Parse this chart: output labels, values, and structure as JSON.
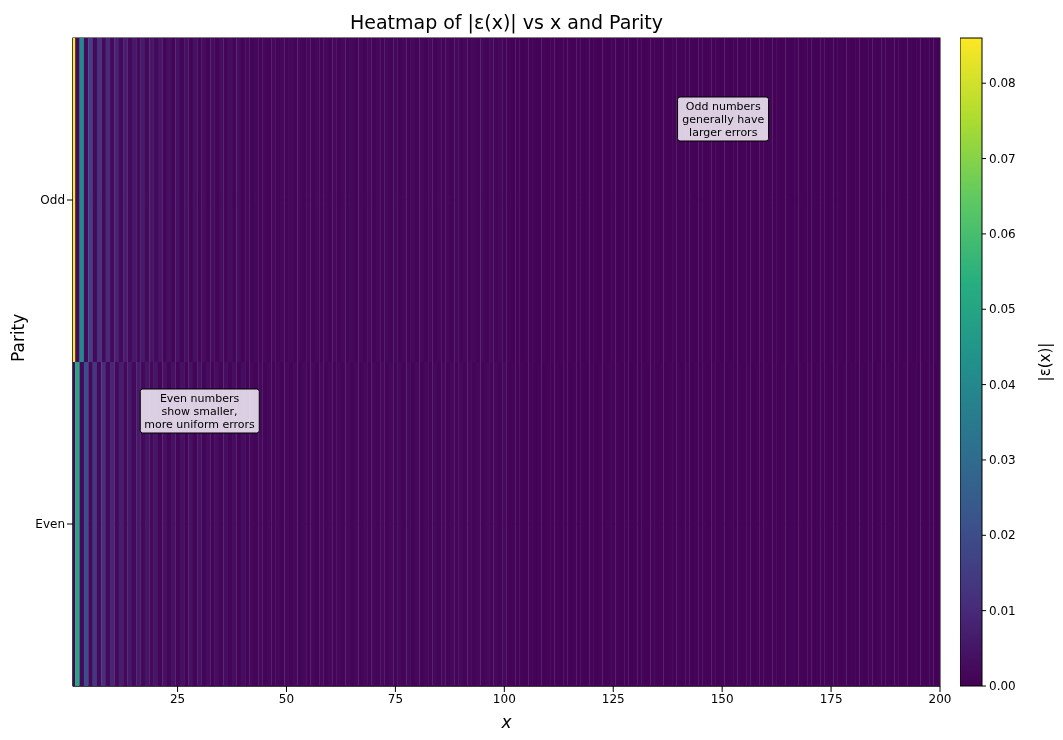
{
  "chart_data": {
    "type": "heatmap",
    "title": "Heatmap of |ε(x)| vs x and Parity",
    "xlabel": "x",
    "ylabel": "Parity",
    "clabel": "|ε(x)|",
    "x": [
      1,
      2,
      3,
      4,
      5,
      6,
      7,
      8,
      9,
      10,
      11,
      12,
      13,
      14,
      15,
      16,
      17,
      18,
      19,
      20,
      21,
      22,
      23,
      24,
      25,
      26,
      27,
      28,
      29,
      30,
      31,
      32,
      33,
      34,
      35,
      36,
      37,
      38,
      39,
      40,
      41,
      42,
      43,
      44,
      45,
      46,
      47,
      48,
      49,
      50,
      51,
      52,
      53,
      54,
      55,
      56,
      57,
      58,
      59,
      60,
      61,
      62,
      63,
      64,
      65,
      66,
      67,
      68,
      69,
      70,
      71,
      72,
      73,
      74,
      75,
      76,
      77,
      78,
      79,
      80,
      81,
      82,
      83,
      84,
      85,
      86,
      87,
      88,
      89,
      90,
      91,
      92,
      93,
      94,
      95,
      96,
      97,
      98,
      99,
      100,
      101,
      102,
      103,
      104,
      105,
      106,
      107,
      108,
      109,
      110,
      111,
      112,
      113,
      114,
      115,
      116,
      117,
      118,
      119,
      120,
      121,
      122,
      123,
      124,
      125,
      126,
      127,
      128,
      129,
      130,
      131,
      132,
      133,
      134,
      135,
      136,
      137,
      138,
      139,
      140,
      141,
      142,
      143,
      144,
      145,
      146,
      147,
      148,
      149,
      150,
      151,
      152,
      153,
      154,
      155,
      156,
      157,
      158,
      159,
      160,
      161,
      162,
      163,
      164,
      165,
      166,
      167,
      168,
      169,
      170,
      171,
      172,
      173,
      174,
      175,
      176,
      177,
      178,
      179,
      180,
      181,
      182,
      183,
      184,
      185,
      186,
      187,
      188,
      189,
      190,
      191,
      192,
      193,
      194,
      195,
      196,
      197,
      198,
      199,
      200
    ],
    "y_categories": [
      "Odd",
      "Even"
    ],
    "cells": [
      [
        0.086,
        0.002,
        0.04,
        0.002,
        0.016,
        0.002,
        0.012,
        0.002,
        0.01,
        0.002,
        0.008,
        0.002,
        0.007,
        0.002,
        0.006,
        0.002,
        0.006,
        0.002,
        0.005,
        0.002,
        0.005,
        0.001,
        0.004,
        0.001,
        0.004,
        0.001,
        0.004,
        0.001,
        0.004,
        0.001,
        0.003,
        0.001,
        0.003,
        0.001,
        0.003,
        0.001,
        0.003,
        0.001,
        0.003,
        0.001,
        0.002,
        0.001,
        0.002,
        0.001,
        0.002,
        0.001,
        0.002,
        0.001,
        0.002,
        0.001,
        0.002,
        0.001,
        0.002,
        0.001,
        0.002,
        0.001,
        0.002,
        0.001,
        0.002,
        0.001,
        0.002,
        0.001,
        0.002,
        0.001,
        0.002,
        0.001,
        0.002,
        0.001,
        0.002,
        0.001,
        0.002,
        0.001,
        0.002,
        0.001,
        0.002,
        0.001,
        0.002,
        0.001,
        0.002,
        0.001,
        0.002,
        0.001,
        0.002,
        0.001,
        0.002,
        0.001,
        0.002,
        0.001,
        0.002,
        0.001,
        0.002,
        0.001,
        0.002,
        0.001,
        0.002,
        0.001,
        0.002,
        0.001,
        0.002,
        0.001,
        0.001,
        0.0005,
        0.001,
        0.0005,
        0.001,
        0.0005,
        0.001,
        0.0005,
        0.001,
        0.0005,
        0.001,
        0.0005,
        0.001,
        0.0005,
        0.001,
        0.0005,
        0.001,
        0.0005,
        0.001,
        0.0005,
        0.001,
        0.0005,
        0.001,
        0.0005,
        0.001,
        0.0005,
        0.001,
        0.0005,
        0.001,
        0.0005,
        0.001,
        0.0005,
        0.001,
        0.0005,
        0.001,
        0.0005,
        0.001,
        0.0005,
        0.001,
        0.0005,
        0.001,
        0.0005,
        0.001,
        0.0005,
        0.001,
        0.0005,
        0.001,
        0.0005,
        0.001,
        0.0005,
        0.001,
        0.0005,
        0.001,
        0.0005,
        0.001,
        0.0005,
        0.001,
        0.0005,
        0.001,
        0.0005,
        0.001,
        0.0005,
        0.001,
        0.0005,
        0.001,
        0.0005,
        0.001,
        0.0005,
        0.001,
        0.0005,
        0.001,
        0.0005,
        0.001,
        0.0005,
        0.001,
        0.0005,
        0.001,
        0.0005,
        0.001,
        0.0005,
        0.001,
        0.0005,
        0.001,
        0.0005,
        0.001,
        0.0005,
        0.001,
        0.0005,
        0.001,
        0.0005,
        0.001,
        0.0005,
        0.001,
        0.0005,
        0.001,
        0.0005,
        0.001,
        0.0005,
        0.001,
        0.0005
      ],
      [
        0.002,
        0.05,
        0.002,
        0.02,
        0.002,
        0.014,
        0.002,
        0.011,
        0.002,
        0.009,
        0.002,
        0.007,
        0.002,
        0.006,
        0.002,
        0.006,
        0.002,
        0.005,
        0.002,
        0.005,
        0.001,
        0.004,
        0.001,
        0.004,
        0.001,
        0.004,
        0.001,
        0.004,
        0.001,
        0.004,
        0.001,
        0.003,
        0.001,
        0.003,
        0.001,
        0.003,
        0.001,
        0.003,
        0.001,
        0.003,
        0.001,
        0.002,
        0.001,
        0.002,
        0.001,
        0.002,
        0.001,
        0.002,
        0.001,
        0.002,
        0.001,
        0.002,
        0.001,
        0.002,
        0.001,
        0.002,
        0.001,
        0.002,
        0.001,
        0.002,
        0.001,
        0.002,
        0.001,
        0.002,
        0.001,
        0.002,
        0.001,
        0.002,
        0.001,
        0.002,
        0.001,
        0.002,
        0.001,
        0.002,
        0.001,
        0.002,
        0.001,
        0.002,
        0.001,
        0.002,
        0.001,
        0.002,
        0.001,
        0.002,
        0.001,
        0.002,
        0.001,
        0.002,
        0.001,
        0.002,
        0.001,
        0.002,
        0.001,
        0.002,
        0.001,
        0.002,
        0.001,
        0.002,
        0.001,
        0.002,
        0.0005,
        0.001,
        0.0005,
        0.001,
        0.0005,
        0.001,
        0.0005,
        0.001,
        0.0005,
        0.001,
        0.0005,
        0.001,
        0.0005,
        0.001,
        0.0005,
        0.001,
        0.0005,
        0.001,
        0.0005,
        0.001,
        0.0005,
        0.001,
        0.0005,
        0.001,
        0.0005,
        0.001,
        0.0005,
        0.001,
        0.0005,
        0.001,
        0.0005,
        0.001,
        0.0005,
        0.001,
        0.0005,
        0.001,
        0.0005,
        0.001,
        0.0005,
        0.001,
        0.0005,
        0.001,
        0.0005,
        0.001,
        0.0005,
        0.001,
        0.0005,
        0.001,
        0.0005,
        0.001,
        0.0005,
        0.001,
        0.0005,
        0.001,
        0.0005,
        0.001,
        0.0005,
        0.001,
        0.0005,
        0.001,
        0.0005,
        0.001,
        0.0005,
        0.001,
        0.0005,
        0.001,
        0.0005,
        0.001,
        0.0005,
        0.001,
        0.0005,
        0.001,
        0.0005,
        0.001,
        0.0005,
        0.001,
        0.0005,
        0.001,
        0.0005,
        0.001,
        0.0005,
        0.001,
        0.0005,
        0.001,
        0.0005,
        0.001,
        0.0005,
        0.001,
        0.0005,
        0.001,
        0.0005,
        0.001,
        0.0005,
        0.001,
        0.0005,
        0.001,
        0.0005,
        0.001,
        0.0005,
        0.001
      ]
    ],
    "xlim": [
      1,
      200
    ],
    "xticks": [
      25,
      50,
      75,
      100,
      125,
      150,
      175,
      200
    ],
    "clim": [
      0,
      0.086
    ],
    "cticks": [
      {
        "value": 0,
        "label": "0.00"
      },
      0.01,
      0.02,
      0.03,
      0.04,
      0.05,
      0.06,
      0.07,
      0.08
    ],
    "grid": true,
    "annotations": [
      "Odd numbers\ngenerally have\nlarger errors",
      "Even numbers\nshow smaller,\nmore uniform errors"
    ]
  }
}
